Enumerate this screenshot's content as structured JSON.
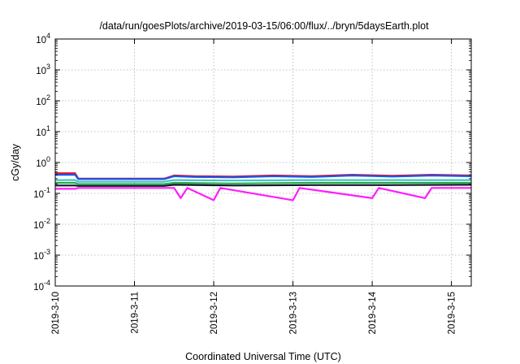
{
  "chart_data": {
    "type": "line",
    "title": "/data/run/goesPlots/archive/2019-03-15/06:00/flux/../bryn/5daysEarth.plot",
    "xlabel": "Coordinated Universal Time (UTC)",
    "ylabel": "cGy/day",
    "yscale": "log",
    "ylim": [
      0.0001,
      10000
    ],
    "xlim": [
      "2019-03-10 00:00",
      "2019-03-15 06:00"
    ],
    "x_ticks": [
      "2019-3-10",
      "2019-3-11",
      "2019-3-12",
      "2019-3-13",
      "2019-3-14",
      "2019-3-15"
    ],
    "y_ticks": [
      {
        "base": "10",
        "exp": "-4"
      },
      {
        "base": "10",
        "exp": "-3"
      },
      {
        "base": "10",
        "exp": "-2"
      },
      {
        "base": "10",
        "exp": "-1"
      },
      {
        "base": "10",
        "exp": "0"
      },
      {
        "base": "10",
        "exp": "1"
      },
      {
        "base": "10",
        "exp": "2"
      },
      {
        "base": "10",
        "exp": "3"
      },
      {
        "base": "10",
        "exp": "4"
      }
    ],
    "grid": true,
    "legend": "none",
    "series": [
      {
        "color": "#e0102a",
        "values": [
          {
            "x": "2019-03-10 00:00",
            "y": 0.45
          },
          {
            "x": "2019-03-10 06:00",
            "y": 0.45
          },
          {
            "x": "2019-03-10 07:00",
            "y": 0.3
          },
          {
            "x": "2019-03-11 09:00",
            "y": 0.3
          },
          {
            "x": "2019-03-11 12:00",
            "y": 0.38
          },
          {
            "x": "2019-03-11 18:00",
            "y": 0.36
          },
          {
            "x": "2019-03-12 06:00",
            "y": 0.35
          },
          {
            "x": "2019-03-12 18:00",
            "y": 0.38
          },
          {
            "x": "2019-03-13 06:00",
            "y": 0.36
          },
          {
            "x": "2019-03-13 18:00",
            "y": 0.4
          },
          {
            "x": "2019-03-14 06:00",
            "y": 0.37
          },
          {
            "x": "2019-03-14 18:00",
            "y": 0.4
          },
          {
            "x": "2019-03-15 06:00",
            "y": 0.38
          }
        ]
      },
      {
        "color": "#1a57e8",
        "values": [
          {
            "x": "2019-03-10 00:00",
            "y": 0.4
          },
          {
            "x": "2019-03-10 06:00",
            "y": 0.4
          },
          {
            "x": "2019-03-10 07:00",
            "y": 0.29
          },
          {
            "x": "2019-03-11 09:00",
            "y": 0.29
          },
          {
            "x": "2019-03-11 12:00",
            "y": 0.36
          },
          {
            "x": "2019-03-11 18:00",
            "y": 0.34
          },
          {
            "x": "2019-03-12 06:00",
            "y": 0.33
          },
          {
            "x": "2019-03-12 18:00",
            "y": 0.36
          },
          {
            "x": "2019-03-13 06:00",
            "y": 0.34
          },
          {
            "x": "2019-03-13 18:00",
            "y": 0.38
          },
          {
            "x": "2019-03-14 06:00",
            "y": 0.35
          },
          {
            "x": "2019-03-14 18:00",
            "y": 0.38
          },
          {
            "x": "2019-03-15 06:00",
            "y": 0.36
          }
        ]
      },
      {
        "color": "#3cc8c8",
        "values": [
          {
            "x": "2019-03-10 00:00",
            "y": 0.27
          },
          {
            "x": "2019-03-10 06:00",
            "y": 0.27
          },
          {
            "x": "2019-03-10 07:00",
            "y": 0.24
          },
          {
            "x": "2019-03-11 09:00",
            "y": 0.24
          },
          {
            "x": "2019-03-11 12:00",
            "y": 0.27
          },
          {
            "x": "2019-03-12 06:00",
            "y": 0.26
          },
          {
            "x": "2019-03-13 06:00",
            "y": 0.27
          },
          {
            "x": "2019-03-14 06:00",
            "y": 0.27
          },
          {
            "x": "2019-03-15 06:00",
            "y": 0.27
          }
        ]
      },
      {
        "color": "#2aa84a",
        "values": [
          {
            "x": "2019-03-10 00:00",
            "y": 0.22
          },
          {
            "x": "2019-03-10 06:00",
            "y": 0.22
          },
          {
            "x": "2019-03-10 07:00",
            "y": 0.2
          },
          {
            "x": "2019-03-11 09:00",
            "y": 0.2
          },
          {
            "x": "2019-03-11 12:00",
            "y": 0.22
          },
          {
            "x": "2019-03-12 06:00",
            "y": 0.21
          },
          {
            "x": "2019-03-13 06:00",
            "y": 0.22
          },
          {
            "x": "2019-03-14 06:00",
            "y": 0.22
          },
          {
            "x": "2019-03-15 06:00",
            "y": 0.22
          }
        ]
      },
      {
        "color": "#101828",
        "values": [
          {
            "x": "2019-03-10 00:00",
            "y": 0.18
          },
          {
            "x": "2019-03-10 06:00",
            "y": 0.18
          },
          {
            "x": "2019-03-10 07:00",
            "y": 0.175
          },
          {
            "x": "2019-03-11 09:00",
            "y": 0.175
          },
          {
            "x": "2019-03-11 12:00",
            "y": 0.19
          },
          {
            "x": "2019-03-12 06:00",
            "y": 0.18
          },
          {
            "x": "2019-03-13 06:00",
            "y": 0.185
          },
          {
            "x": "2019-03-14 06:00",
            "y": 0.185
          },
          {
            "x": "2019-03-15 06:00",
            "y": 0.19
          }
        ]
      },
      {
        "color": "#ff1cff",
        "values": [
          {
            "x": "2019-03-10 00:00",
            "y": 0.14
          },
          {
            "x": "2019-03-10 06:00",
            "y": 0.14
          },
          {
            "x": "2019-03-10 07:00",
            "y": 0.15
          },
          {
            "x": "2019-03-11 09:00",
            "y": 0.15
          },
          {
            "x": "2019-03-11 12:00",
            "y": 0.15
          },
          {
            "x": "2019-03-11 14:00",
            "y": 0.07
          },
          {
            "x": "2019-03-11 16:00",
            "y": 0.15
          },
          {
            "x": "2019-03-12 00:00",
            "y": 0.06
          },
          {
            "x": "2019-03-12 02:00",
            "y": 0.15
          },
          {
            "x": "2019-03-13 00:00",
            "y": 0.06
          },
          {
            "x": "2019-03-13 02:00",
            "y": 0.15
          },
          {
            "x": "2019-03-14 00:00",
            "y": 0.07
          },
          {
            "x": "2019-03-14 02:00",
            "y": 0.15
          },
          {
            "x": "2019-03-14 16:00",
            "y": 0.07
          },
          {
            "x": "2019-03-14 18:00",
            "y": 0.15
          },
          {
            "x": "2019-03-15 06:00",
            "y": 0.15
          }
        ]
      }
    ]
  }
}
